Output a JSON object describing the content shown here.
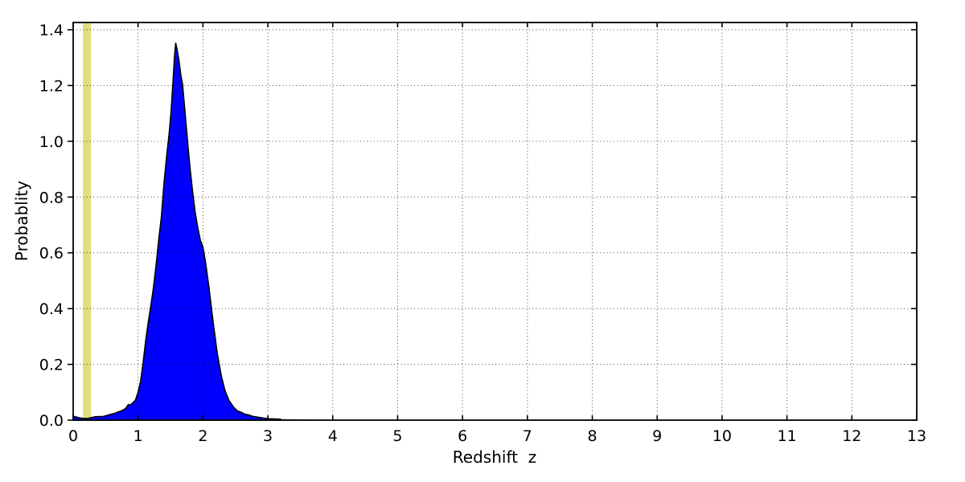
{
  "figure": {
    "background": "#ffffff"
  },
  "chart_data": {
    "type": "area",
    "title": "",
    "xlabel": "Redshift  z",
    "ylabel": "Probablity",
    "xlim": [
      0,
      13
    ],
    "ylim": [
      0,
      1.426
    ],
    "x_ticks": [
      0,
      1,
      2,
      3,
      4,
      5,
      6,
      7,
      8,
      9,
      10,
      11,
      12,
      13
    ],
    "y_ticks": [
      0.0,
      0.2,
      0.4,
      0.6,
      0.8,
      1.0,
      1.2,
      1.4
    ],
    "y_tick_labels": [
      "0.0",
      "0.2",
      "0.4",
      "0.6",
      "0.8",
      "1.0",
      "1.2",
      "1.4"
    ],
    "grid": "dotted",
    "grid_color": "#000000",
    "legend": "none",
    "peak": {
      "z": 1.58,
      "probability": 1.35
    },
    "highlight_band": {
      "name": "reference-redshift-band",
      "x_start": 0.15,
      "x_end": 0.275,
      "color": "#dfdf7e"
    },
    "series": [
      {
        "name": "redshift-probability-distribution",
        "fill_color": "#0000ff",
        "edge_color": "#000000",
        "points": [
          [
            0.0,
            0.014
          ],
          [
            0.05,
            0.011
          ],
          [
            0.1,
            0.008
          ],
          [
            0.16,
            0.006
          ],
          [
            0.22,
            0.006
          ],
          [
            0.28,
            0.009
          ],
          [
            0.34,
            0.012
          ],
          [
            0.4,
            0.013
          ],
          [
            0.46,
            0.013
          ],
          [
            0.52,
            0.017
          ],
          [
            0.58,
            0.021
          ],
          [
            0.64,
            0.024
          ],
          [
            0.7,
            0.03
          ],
          [
            0.76,
            0.035
          ],
          [
            0.81,
            0.042
          ],
          [
            0.85,
            0.056
          ],
          [
            0.88,
            0.054
          ],
          [
            0.92,
            0.062
          ],
          [
            0.96,
            0.072
          ],
          [
            1.0,
            0.1
          ],
          [
            1.04,
            0.14
          ],
          [
            1.08,
            0.21
          ],
          [
            1.12,
            0.29
          ],
          [
            1.16,
            0.355
          ],
          [
            1.2,
            0.415
          ],
          [
            1.24,
            0.48
          ],
          [
            1.28,
            0.56
          ],
          [
            1.32,
            0.65
          ],
          [
            1.36,
            0.73
          ],
          [
            1.4,
            0.85
          ],
          [
            1.44,
            0.945
          ],
          [
            1.48,
            1.03
          ],
          [
            1.51,
            1.11
          ],
          [
            1.54,
            1.22
          ],
          [
            1.56,
            1.3
          ],
          [
            1.58,
            1.352
          ],
          [
            1.6,
            1.33
          ],
          [
            1.63,
            1.29
          ],
          [
            1.66,
            1.235
          ],
          [
            1.685,
            1.205
          ],
          [
            1.71,
            1.14
          ],
          [
            1.74,
            1.06
          ],
          [
            1.77,
            0.98
          ],
          [
            1.8,
            0.905
          ],
          [
            1.84,
            0.82
          ],
          [
            1.88,
            0.745
          ],
          [
            1.92,
            0.69
          ],
          [
            1.96,
            0.645
          ],
          [
            2.0,
            0.62
          ],
          [
            2.04,
            0.565
          ],
          [
            2.09,
            0.48
          ],
          [
            2.16,
            0.345
          ],
          [
            2.22,
            0.24
          ],
          [
            2.28,
            0.162
          ],
          [
            2.34,
            0.105
          ],
          [
            2.4,
            0.071
          ],
          [
            2.47,
            0.047
          ],
          [
            2.53,
            0.033
          ],
          [
            2.59,
            0.028
          ],
          [
            2.65,
            0.021
          ],
          [
            2.7,
            0.019
          ],
          [
            2.76,
            0.014
          ],
          [
            2.86,
            0.01
          ],
          [
            2.94,
            0.007
          ],
          [
            3.02,
            0.005
          ],
          [
            3.12,
            0.004
          ],
          [
            3.2,
            0.003
          ]
        ]
      }
    ],
    "tail_line": {
      "name": "fading-tail",
      "color": "#999999",
      "points": [
        [
          3.2,
          0.003
        ],
        [
          3.55,
          0.0015
        ],
        [
          3.9,
          0.001
        ]
      ]
    }
  }
}
